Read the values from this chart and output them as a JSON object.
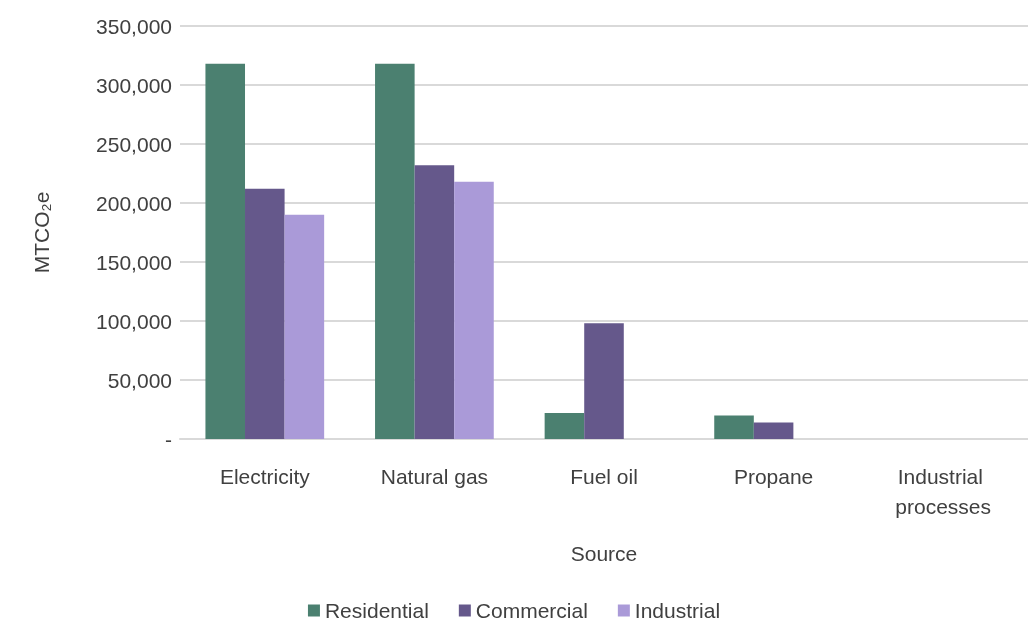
{
  "chart_data": {
    "type": "bar",
    "xlabel": "Source",
    "ylabel": "MTCO₂e",
    "categories": [
      "Electricity",
      "Natural gas",
      "Fuel oil",
      "Propane",
      "Industrial processes"
    ],
    "series": [
      {
        "name": "Residential",
        "color": "#4b8070",
        "values": [
          318000,
          318000,
          22000,
          20000,
          0
        ]
      },
      {
        "name": "Commercial",
        "color": "#65588b",
        "values": [
          212000,
          232000,
          98000,
          14000,
          0
        ]
      },
      {
        "name": "Industrial",
        "color": "#aa9ad8",
        "values": [
          190000,
          218000,
          0,
          0,
          0
        ]
      }
    ],
    "ylim": [
      0,
      350000
    ],
    "yticks": [
      {
        "value": 0,
        "label": "-"
      },
      {
        "value": 50000,
        "label": "50,000"
      },
      {
        "value": 100000,
        "label": "100,000"
      },
      {
        "value": 150000,
        "label": "150,000"
      },
      {
        "value": 200000,
        "label": "200,000"
      },
      {
        "value": 250000,
        "label": "250,000"
      },
      {
        "value": 300000,
        "label": "300,000"
      },
      {
        "value": 350000,
        "label": "350,000"
      }
    ],
    "grid": "y",
    "legend": "bottom"
  }
}
